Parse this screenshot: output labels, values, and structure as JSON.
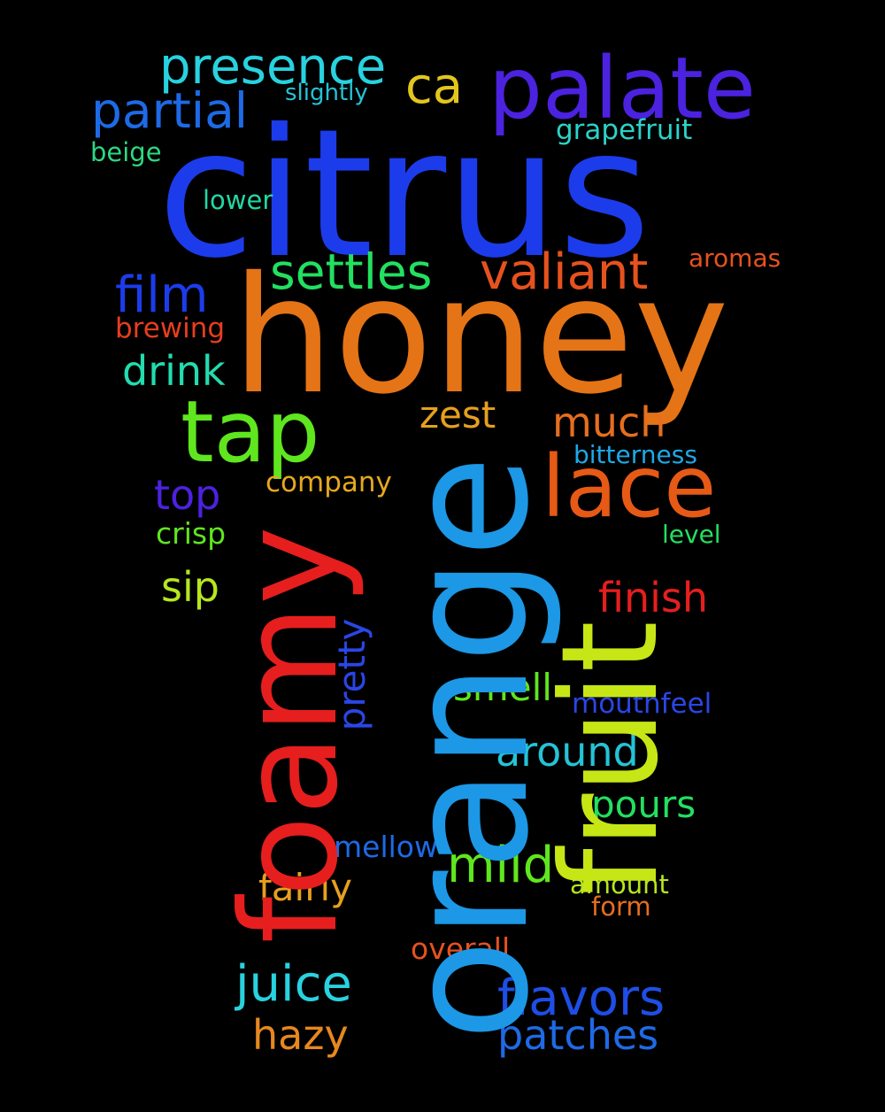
{
  "words": {
    "citrus": "citrus",
    "honey": "honey",
    "orange": "orange",
    "foamy": "foamy",
    "fruit": "fruit",
    "palate": "palate",
    "presence": "presence",
    "ca": "ca",
    "partial": "partial",
    "slightly": "slightly",
    "grapefruit": "grapefruit",
    "beige": "beige",
    "lower": "lower",
    "settles": "settles",
    "valiant": "valiant",
    "aromas": "aromas",
    "film": "film",
    "brewing": "brewing",
    "drink": "drink",
    "tap": "tap",
    "zest": "zest",
    "much": "much",
    "lace": "lace",
    "bitterness": "bitterness",
    "company": "company",
    "top": "top",
    "crisp": "crisp",
    "level": "level",
    "sip": "sip",
    "finish": "finish",
    "pretty": "pretty",
    "smell": "smell",
    "mouthfeel": "mouthfeel",
    "around": "around",
    "pours": "pours",
    "mellow": "mellow",
    "mild": "mild",
    "fairly": "fairly",
    "amount": "amount",
    "form": "form",
    "overall": "overall",
    "juice": "juice",
    "flavors": "flavors",
    "hazy": "hazy",
    "patches": "patches"
  }
}
